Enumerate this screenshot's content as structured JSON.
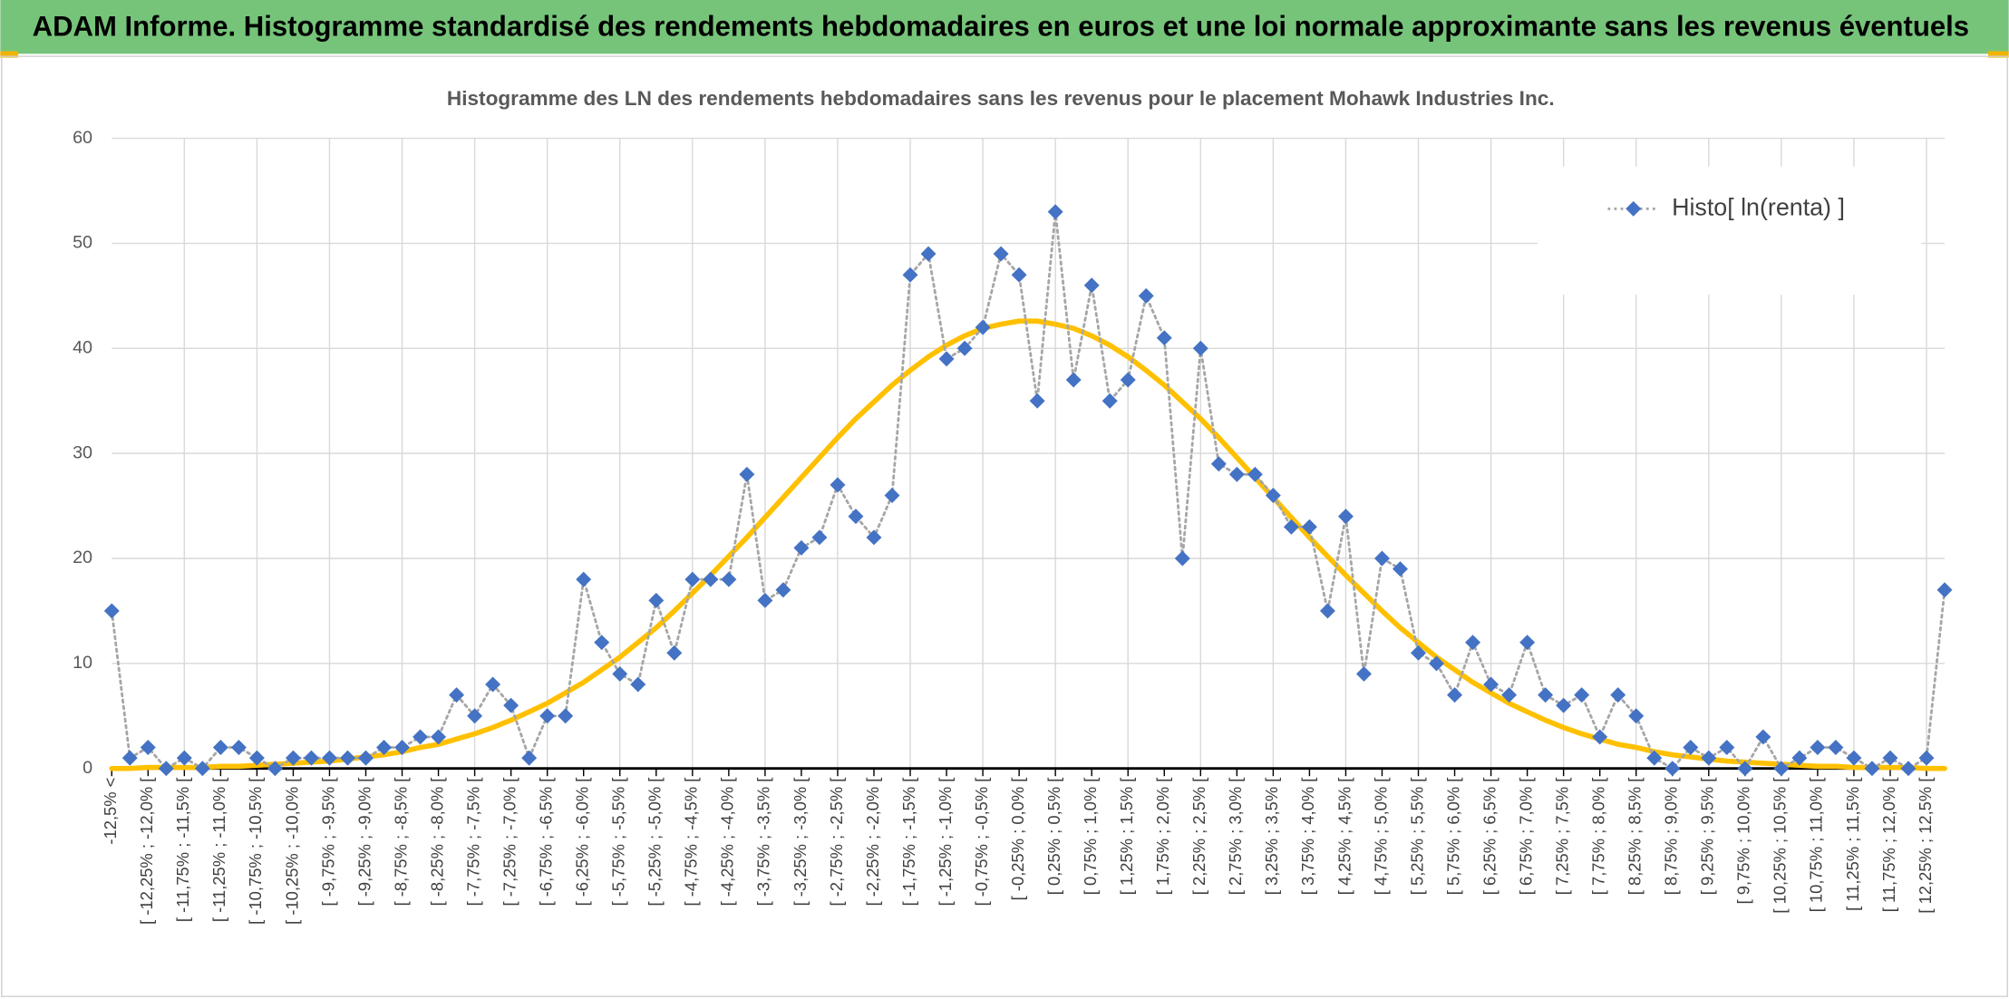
{
  "header": {
    "title": "ADAM Informe. Histogramme standardisé des rendements hebdomadaires en euros et une loi normale approximante sans les revenus éventuels"
  },
  "chart_data": {
    "type": "line",
    "title": "Histogramme des LN des rendements hebdomadaires sans les revenus pour le placement Mohawk Industries Inc.",
    "categories": [
      "-12,5% <",
      null,
      "[ -12,25% ; -12,0% [",
      null,
      "[ -11,75% ; -11,5% [",
      null,
      "[ -11,25% ; -11,0% [",
      null,
      "[ -10,75% ; -10,5% [",
      null,
      "[ -10,25% ; -10,0% [",
      null,
      "[ -9,75% ; -9,5% [",
      null,
      "[ -9,25% ; -9,0% [",
      null,
      "[ -8,75% ; -8,5% [",
      null,
      "[ -8,25% ; -8,0% [",
      null,
      "[ -7,75% ; -7,5% [",
      null,
      "[ -7,25% ; -7,0% [",
      null,
      "[ -6,75% ; -6,5% [",
      null,
      "[ -6,25% ; -6,0% [",
      null,
      "[ -5,75% ; -5,5% [",
      null,
      "[ -5,25% ; -5,0% [",
      null,
      "[ -4,75% ; -4,5% [",
      null,
      "[ -4,25% ; -4,0% [",
      null,
      "[ -3,75% ; -3,5% [",
      null,
      "[ -3,25% ; -3,0% [",
      null,
      "[ -2,75% ; -2,5% [",
      null,
      "[ -2,25% ; -2,0% [",
      null,
      "[ -1,75% ; -1,5% [",
      null,
      "[ -1,25% ; -1,0% [",
      null,
      "[ -0,75% ; -0,5% [",
      null,
      "[ -0,25% ; 0,0% [",
      null,
      "[ 0,25% ; 0,5% [",
      null,
      "[ 0,75% ; 1,0% [",
      null,
      "[ 1,25% ; 1,5% [",
      null,
      "[ 1,75% ; 2,0% [",
      null,
      "[ 2,25% ; 2,5% [",
      null,
      "[ 2,75% ; 3,0% [",
      null,
      "[ 3,25% ; 3,5% [",
      null,
      "[ 3,75% ; 4,0% [",
      null,
      "[ 4,25% ; 4,5% [",
      null,
      "[ 4,75% ; 5,0% [",
      null,
      "[ 5,25% ; 5,5% [",
      null,
      "[ 5,75% ; 6,0% [",
      null,
      "[ 6,25% ; 6,5% [",
      null,
      "[ 6,75% ; 7,0% [",
      null,
      "[ 7,25% ; 7,5% [",
      null,
      "[ 7,75% ; 8,0% [",
      null,
      "[ 8,25% ; 8,5% [",
      null,
      "[ 8,75% ; 9,0% [",
      null,
      "[ 9,25% ; 9,5% [",
      null,
      "[ 9,75% ; 10,0% [",
      null,
      "[ 10,25% ; 10,5% [",
      null,
      "[ 10,75% ; 11,0% [",
      null,
      "[ 11,25% ; 11,5% [",
      null,
      "[ 11,75% ; 12,0% [",
      null,
      "[ 12,25% ; 12,5% [",
      null
    ],
    "series": [
      {
        "name": "Histo[ ln(renta) ]",
        "color": "#4472c4",
        "line_color": "#a6a6a6",
        "line_style": "dotted",
        "marker": "diamond",
        "values": [
          15,
          1,
          2,
          0,
          1,
          0,
          2,
          2,
          1,
          0,
          1,
          1,
          1,
          1,
          1,
          2,
          2,
          3,
          3,
          7,
          5,
          8,
          6,
          1,
          5,
          5,
          18,
          12,
          9,
          8,
          16,
          11,
          18,
          18,
          18,
          28,
          16,
          17,
          21,
          22,
          27,
          24,
          22,
          26,
          47,
          49,
          39,
          40,
          42,
          49,
          47,
          35,
          53,
          37,
          46,
          35,
          37,
          45,
          41,
          20,
          40,
          29,
          28,
          28,
          26,
          23,
          23,
          15,
          24,
          9,
          20,
          19,
          11,
          10,
          7,
          12,
          8,
          7,
          12,
          7,
          6,
          7,
          3,
          7,
          5,
          1,
          0,
          2,
          1,
          2,
          0,
          3,
          0,
          1,
          2,
          2,
          1,
          0,
          1,
          0,
          1,
          17
        ]
      },
      {
        "color": "#ffc000",
        "line_style": "solid",
        "smooth": true,
        "values": [
          0.0,
          0.0,
          0.1,
          0.1,
          0.1,
          0.1,
          0.2,
          0.2,
          0.3,
          0.4,
          0.5,
          0.6,
          0.7,
          0.9,
          1.1,
          1.3,
          1.6,
          2.0,
          2.3,
          2.8,
          3.3,
          3.9,
          4.6,
          5.4,
          6.2,
          7.2,
          8.2,
          9.4,
          10.6,
          12.0,
          13.4,
          15.0,
          16.7,
          18.4,
          20.2,
          22.0,
          23.9,
          25.8,
          27.7,
          29.6,
          31.5,
          33.3,
          34.9,
          36.5,
          37.9,
          39.2,
          40.3,
          41.2,
          41.9,
          42.3,
          42.6,
          42.6,
          42.3,
          41.9,
          41.2,
          40.3,
          39.2,
          37.9,
          36.5,
          34.9,
          33.3,
          31.5,
          29.6,
          27.7,
          25.8,
          23.9,
          22.0,
          20.2,
          18.4,
          16.7,
          15.0,
          13.4,
          12.0,
          10.6,
          9.4,
          8.2,
          7.2,
          6.2,
          5.4,
          4.6,
          3.9,
          3.3,
          2.8,
          2.3,
          2.0,
          1.6,
          1.3,
          1.1,
          0.9,
          0.7,
          0.6,
          0.5,
          0.4,
          0.3,
          0.2,
          0.2,
          0.1,
          0.1,
          0.1,
          0.1,
          0.0,
          0.0
        ]
      }
    ],
    "ylim": [
      0,
      60
    ],
    "yticks": [
      0,
      10,
      20,
      30,
      40,
      50,
      60
    ],
    "grid": true,
    "legend": "upper right"
  }
}
